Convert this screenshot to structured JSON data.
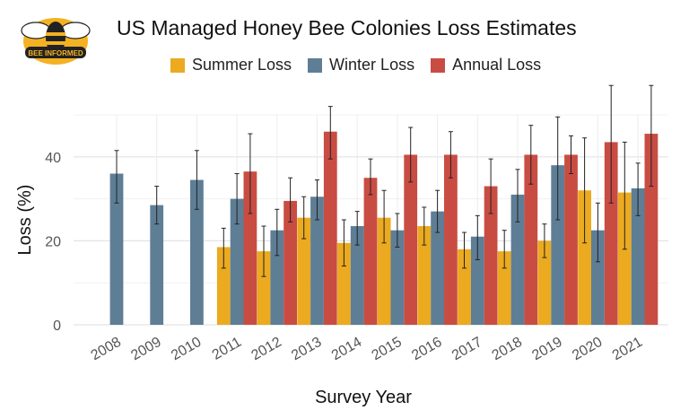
{
  "logo": {
    "text": "BEE INFORMED"
  },
  "chart_data": {
    "type": "bar",
    "title": "US Managed Honey Bee Colonies Loss Estimates",
    "xlabel": "Survey Year",
    "ylabel": "Loss (%)",
    "ylim": [
      0,
      50
    ],
    "yticks": [
      0,
      20,
      40
    ],
    "grid": true,
    "legend_position": "top",
    "categories": [
      "2008",
      "2009",
      "2010",
      "2011",
      "2012",
      "2013",
      "2014",
      "2015",
      "2016",
      "2017",
      "2018",
      "2019",
      "2020",
      "2021"
    ],
    "series": [
      {
        "name": "Summer Loss",
        "color": "#EBAA1F",
        "values": [
          null,
          null,
          null,
          18.5,
          17.5,
          25.5,
          19.5,
          25.5,
          23.5,
          18,
          17.5,
          20,
          32,
          31.5
        ],
        "err_low": [
          null,
          null,
          null,
          13.5,
          11.5,
          20.5,
          14,
          19.5,
          19,
          13.5,
          13.5,
          16,
          19.5,
          18
        ],
        "err_high": [
          null,
          null,
          null,
          23,
          23.5,
          30.5,
          25,
          32,
          28,
          22,
          22.5,
          24,
          44.5,
          43.5
        ]
      },
      {
        "name": "Winter Loss",
        "color": "#5E7E96",
        "values": [
          36,
          28.5,
          34.5,
          30,
          22.5,
          30.5,
          23.5,
          22.5,
          27,
          21,
          31,
          38,
          22.5,
          32.5
        ],
        "err_low": [
          29,
          24,
          27.5,
          24,
          16.5,
          25,
          19,
          18.5,
          22,
          15.5,
          24.5,
          25,
          15,
          26
        ],
        "err_high": [
          41.5,
          33,
          41.5,
          36,
          27.5,
          34.5,
          27,
          26.5,
          32,
          26,
          37,
          49.5,
          29,
          38.5
        ]
      },
      {
        "name": "Annual Loss",
        "color": "#C94C43",
        "values": [
          null,
          null,
          null,
          36.5,
          29.5,
          46,
          35,
          40.5,
          40.5,
          33,
          40.5,
          40.5,
          43.5,
          45.5
        ],
        "err_low": [
          null,
          null,
          null,
          26.5,
          24.5,
          39.5,
          31,
          34,
          35,
          26.5,
          33.5,
          36,
          29,
          33
        ],
        "err_high": [
          null,
          null,
          null,
          45.5,
          35,
          52,
          39.5,
          47,
          46,
          39.5,
          47.5,
          45,
          57,
          57
        ]
      }
    ]
  }
}
